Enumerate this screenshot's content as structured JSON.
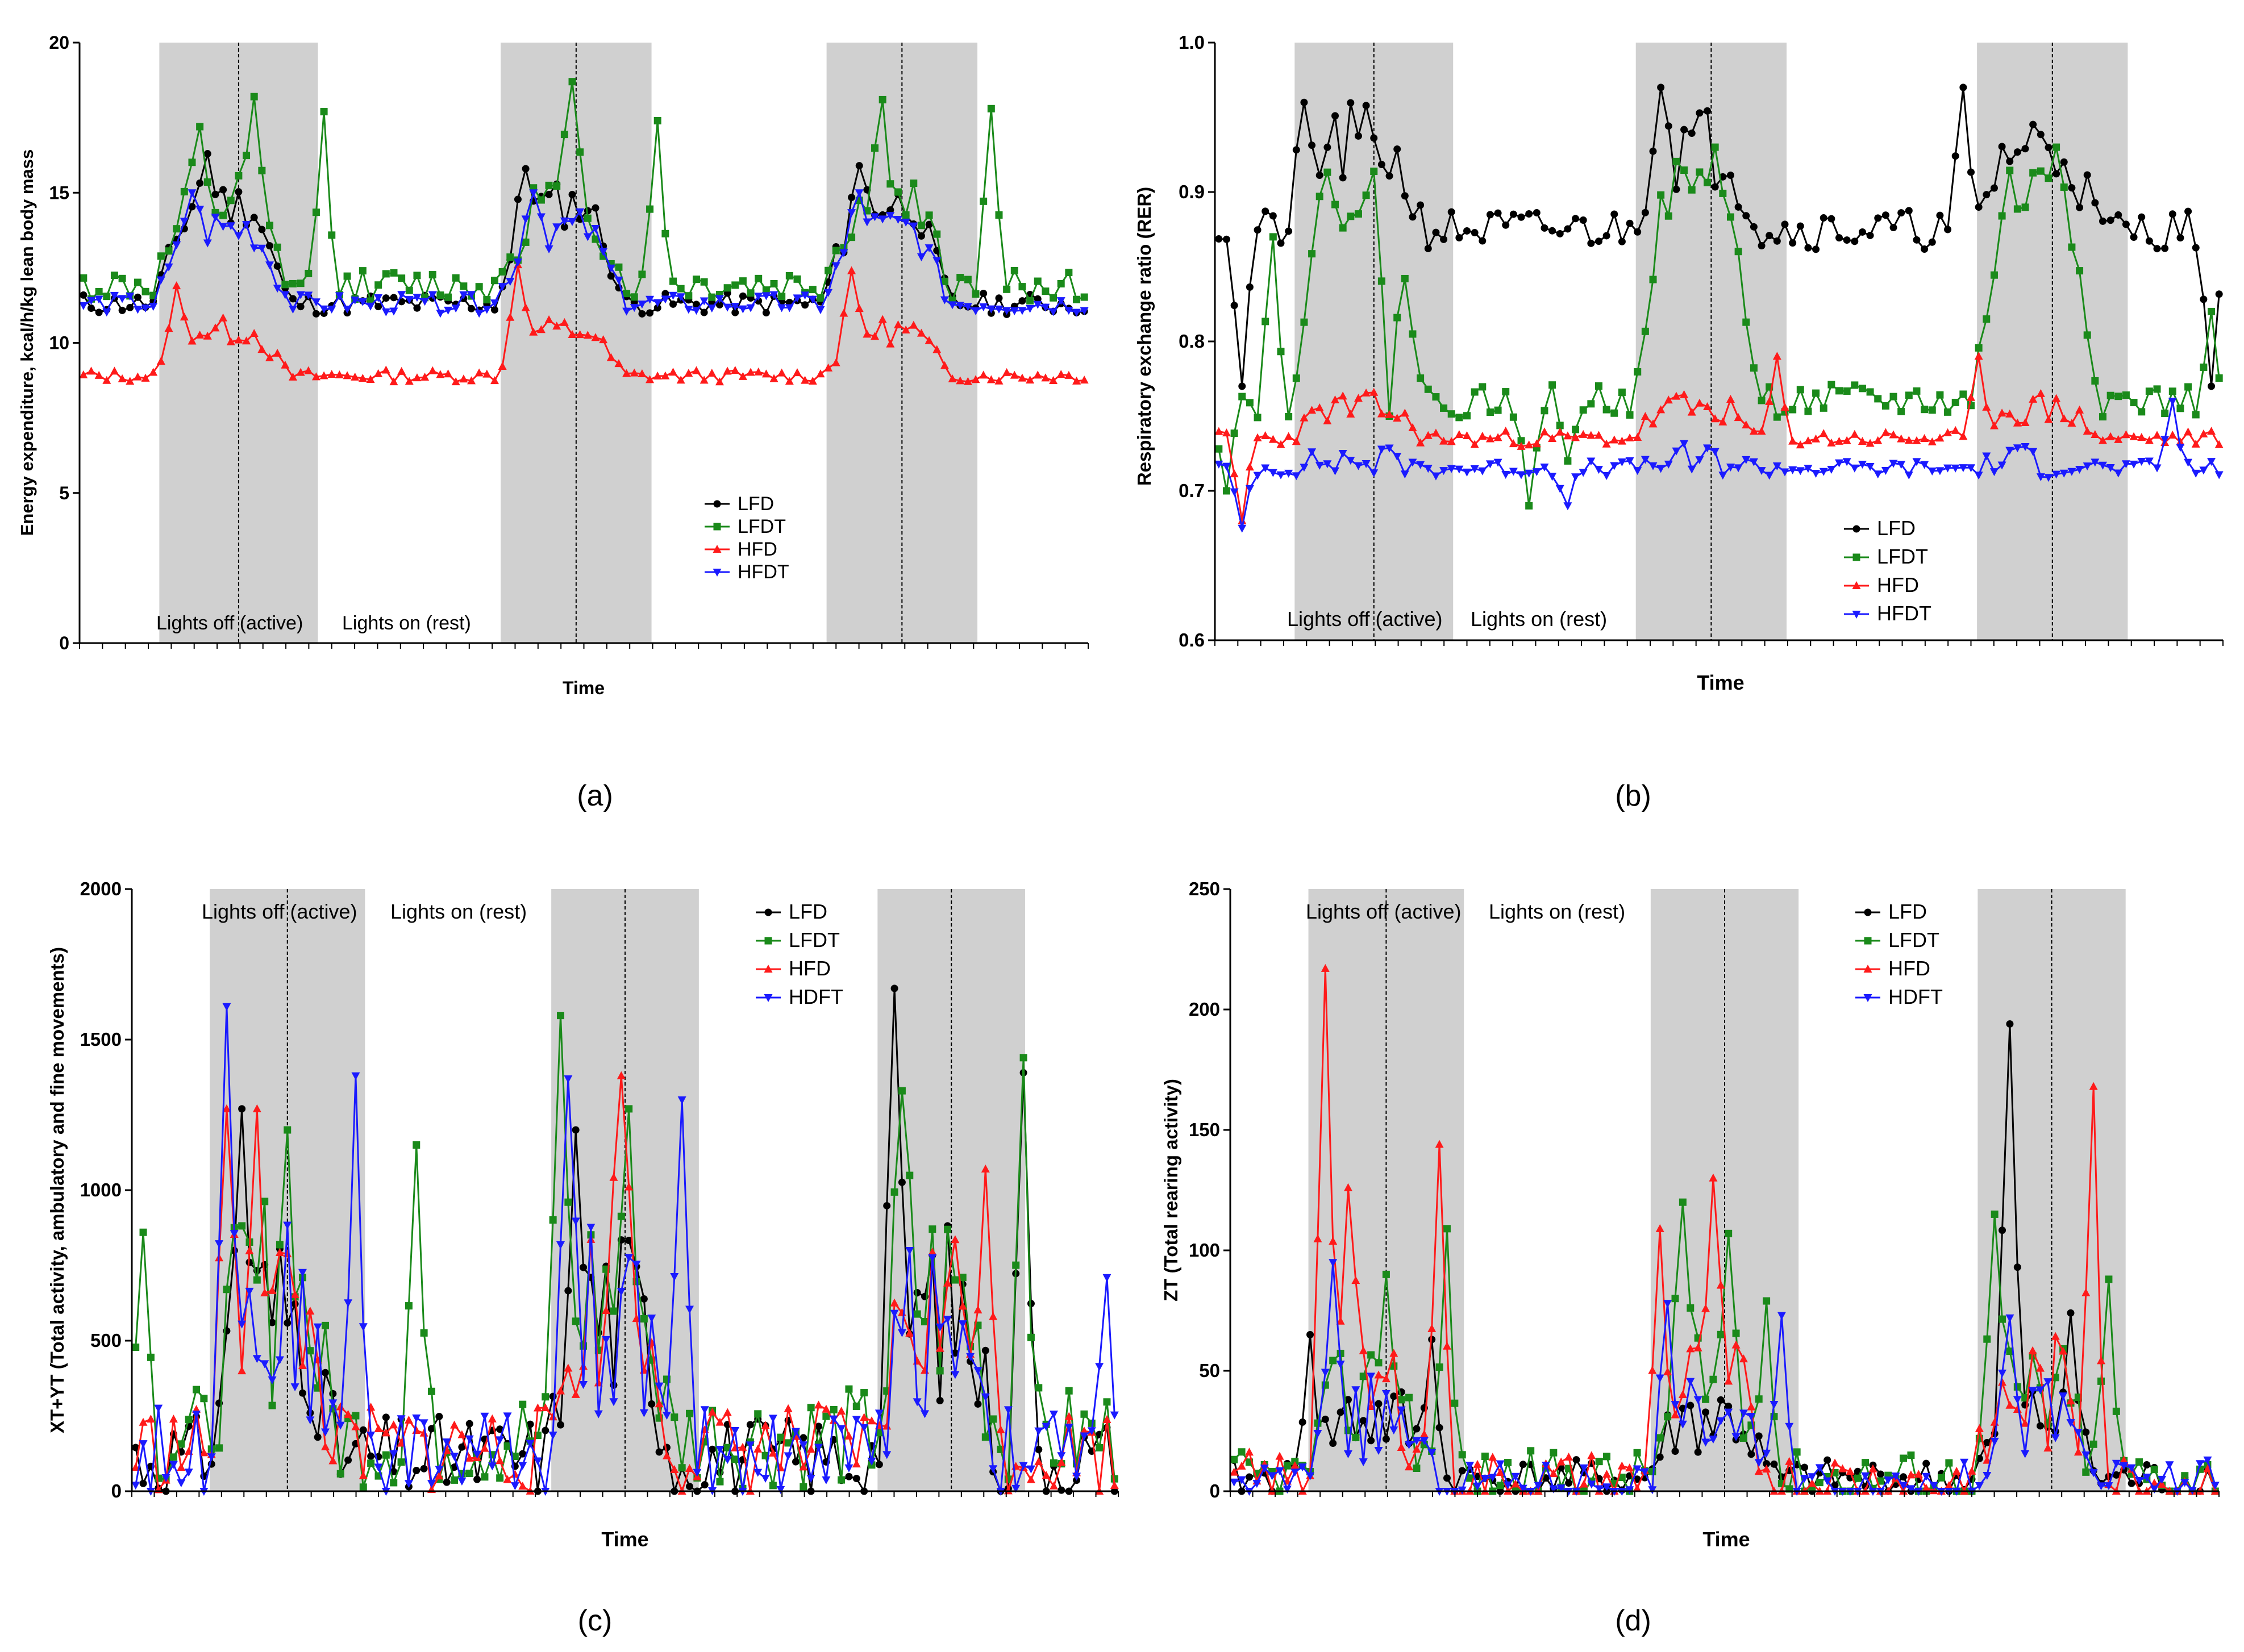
{
  "colors": {
    "LFD": "#000000",
    "LFDT": "#1a8a1a",
    "HFD": "#ff1a1a",
    "HFDT": "#1a1aff",
    "shade": "#d0d0d0"
  },
  "chart_data": [
    {
      "panel_label": "(a)",
      "type": "line",
      "ylabel": "Energy expenditure, kcal/h/kg lean body mass",
      "xlabel": "Time",
      "ylim": [
        0,
        20
      ],
      "yticks": [
        "0",
        "5",
        "10",
        "15",
        "20"
      ],
      "n_points": 130,
      "dark_periods": [
        [
          10,
          30
        ],
        [
          54,
          73
        ],
        [
          96,
          115
        ]
      ],
      "annotations": [
        "Lights off (active)",
        "Lights on (rest)"
      ],
      "legend": [
        "LFD",
        "LFDT",
        "HFD",
        "HFDT"
      ],
      "series": [
        {
          "name": "LFD",
          "marker": "circle",
          "baseline": 11.3,
          "active": 14.6,
          "noise": 0.8,
          "peaks": [
            [
              16,
              16.3
            ],
            [
              57,
              15.8
            ],
            [
              100,
              15.9
            ]
          ],
          "seed": 11
        },
        {
          "name": "LFDT",
          "marker": "square",
          "baseline": 11.9,
          "active": 14.5,
          "noise": 1.2,
          "peaks": [
            [
              15,
              17.2
            ],
            [
              22,
              18.2
            ],
            [
              31,
              17.7
            ],
            [
              63,
              18.7
            ],
            [
              74,
              17.4
            ],
            [
              103,
              18.1
            ],
            [
              117,
              17.8
            ]
          ],
          "seed": 12
        },
        {
          "name": "HFD",
          "marker": "triangle-up",
          "baseline": 8.9,
          "active": 10.4,
          "noise": 0.45,
          "peaks": [
            [
              12,
              11.9
            ],
            [
              56,
              12.6
            ],
            [
              99,
              12.4
            ]
          ],
          "seed": 13
        },
        {
          "name": "HFDT",
          "marker": "triangle-down",
          "baseline": 11.3,
          "active": 13.8,
          "noise": 0.7,
          "peaks": [
            [
              14,
              15.0
            ],
            [
              58,
              15.0
            ],
            [
              100,
              15.0
            ]
          ],
          "seed": 14
        }
      ]
    },
    {
      "panel_label": "(b)",
      "type": "line",
      "ylabel": "Respiratory exchange ratio (RER)",
      "xlabel": "Time",
      "ylim": [
        0.6,
        1.0
      ],
      "yticks": [
        "0.6",
        "0.7",
        "0.8",
        "0.9",
        "1.0"
      ],
      "n_points": 130,
      "dark_periods": [
        [
          10,
          30
        ],
        [
          54,
          73
        ],
        [
          98,
          117
        ]
      ],
      "annotations": [
        "Lights off (active)",
        "Lights on (rest)"
      ],
      "legend": [
        "LFD",
        "LFDT",
        "HFD",
        "HFDT"
      ],
      "series": [
        {
          "name": "LFD",
          "marker": "circle",
          "baseline": 0.875,
          "active": 0.93,
          "noise": 0.03,
          "peaks": [
            [
              3,
              0.77
            ],
            [
              11,
              0.96
            ],
            [
              57,
              0.97
            ],
            [
              96,
              0.97
            ],
            [
              128,
              0.77
            ]
          ],
          "seed": 21
        },
        {
          "name": "LFDT",
          "marker": "square",
          "baseline": 0.76,
          "active": 0.9,
          "noise": 0.025,
          "peaks": [
            [
              1,
              0.7
            ],
            [
              7,
              0.87
            ],
            [
              22,
              0.75
            ],
            [
              40,
              0.69
            ],
            [
              45,
              0.72
            ],
            [
              64,
              0.93
            ],
            [
              108,
              0.93
            ],
            [
              128,
              0.82
            ]
          ],
          "seed": 22
        },
        {
          "name": "HFD",
          "marker": "triangle-up",
          "baseline": 0.735,
          "active": 0.755,
          "noise": 0.012,
          "peaks": [
            [
              3,
              0.68
            ],
            [
              72,
              0.79
            ],
            [
              98,
              0.79
            ]
          ],
          "seed": 23
        },
        {
          "name": "HFDT",
          "marker": "triangle-down",
          "baseline": 0.715,
          "active": 0.72,
          "noise": 0.012,
          "peaks": [
            [
              3,
              0.675
            ],
            [
              45,
              0.69
            ],
            [
              123,
              0.76
            ]
          ],
          "seed": 24
        }
      ]
    },
    {
      "panel_label": "(c)",
      "type": "line",
      "ylabel": "XT+YT (Total activity, ambulatory and fine movements)",
      "xlabel": "Time",
      "ylim": [
        0,
        2000
      ],
      "yticks": [
        "0",
        "500",
        "1000",
        "1500",
        "2000"
      ],
      "n_points": 130,
      "dark_periods": [
        [
          10,
          30
        ],
        [
          55,
          74
        ],
        [
          98,
          117
        ]
      ],
      "annotations": [
        "Lights off (active)",
        "Lights on (rest)"
      ],
      "legend": [
        "LFD",
        "LFDT",
        "HFD",
        "HDFT"
      ],
      "series": [
        {
          "name": "LFD",
          "marker": "circle",
          "baseline": 110,
          "active": 600,
          "noise": 320,
          "peaks": [
            [
              14,
              1270
            ],
            [
              58,
              1200
            ],
            [
              100,
              1670
            ],
            [
              117,
              1390
            ]
          ],
          "seed": 31
        },
        {
          "name": "LFDT",
          "marker": "square",
          "baseline": 180,
          "active": 650,
          "noise": 380,
          "peaks": [
            [
              1,
              860
            ],
            [
              20,
              1200
            ],
            [
              37,
              1150
            ],
            [
              56,
              1580
            ],
            [
              65,
              1270
            ],
            [
              101,
              1330
            ],
            [
              117,
              1440
            ]
          ],
          "seed": 32
        },
        {
          "name": "HFD",
          "marker": "triangle-up",
          "baseline": 140,
          "active": 600,
          "noise": 330,
          "peaks": [
            [
              12,
              1270
            ],
            [
              16,
              1270
            ],
            [
              64,
              1380
            ],
            [
              112,
              1070
            ]
          ],
          "seed": 33
        },
        {
          "name": "HDFT",
          "marker": "triangle-down",
          "baseline": 130,
          "active": 580,
          "noise": 330,
          "peaks": [
            [
              12,
              1610
            ],
            [
              29,
              1380
            ],
            [
              57,
              1370
            ],
            [
              72,
              1300
            ],
            [
              128,
              710
            ]
          ],
          "seed": 34
        }
      ]
    },
    {
      "panel_label": "(d)",
      "type": "line",
      "ylabel": "ZT (Total rearing activity)",
      "xlabel": "Time",
      "ylim": [
        0,
        250
      ],
      "yticks": [
        "0",
        "50",
        "100",
        "150",
        "200",
        "250"
      ],
      "n_points": 130,
      "dark_periods": [
        [
          10,
          30
        ],
        [
          55,
          74
        ],
        [
          98,
          117
        ]
      ],
      "annotations": [
        "Lights off (active)",
        "Lights on (rest)"
      ],
      "legend": [
        "LFD",
        "LFDT",
        "HFD",
        "HDFT"
      ],
      "series": [
        {
          "name": "LFD",
          "marker": "circle",
          "baseline": 5,
          "active": 30,
          "noise": 18,
          "peaks": [
            [
              10,
              65
            ],
            [
              26,
              63
            ],
            [
              102,
              194
            ],
            [
              110,
              74
            ]
          ],
          "seed": 41
        },
        {
          "name": "LFDT",
          "marker": "square",
          "baseline": 6,
          "active": 40,
          "noise": 25,
          "peaks": [
            [
              20,
              90
            ],
            [
              28,
              109
            ],
            [
              59,
              120
            ],
            [
              65,
              107
            ],
            [
              70,
              79
            ],
            [
              100,
              115
            ],
            [
              115,
              88
            ]
          ],
          "seed": 42
        },
        {
          "name": "HFD",
          "marker": "triangle-up",
          "baseline": 4,
          "active": 40,
          "noise": 28,
          "peaks": [
            [
              12,
              217
            ],
            [
              15,
              126
            ],
            [
              27,
              144
            ],
            [
              56,
              109
            ],
            [
              63,
              130
            ],
            [
              113,
              168
            ]
          ],
          "seed": 43
        },
        {
          "name": "HDFT",
          "marker": "triangle-down",
          "baseline": 4,
          "active": 30,
          "noise": 18,
          "peaks": [
            [
              13,
              95
            ],
            [
              57,
              78
            ],
            [
              72,
              73
            ],
            [
              102,
              72
            ],
            [
              128,
              13
            ]
          ],
          "seed": 44
        }
      ]
    }
  ]
}
